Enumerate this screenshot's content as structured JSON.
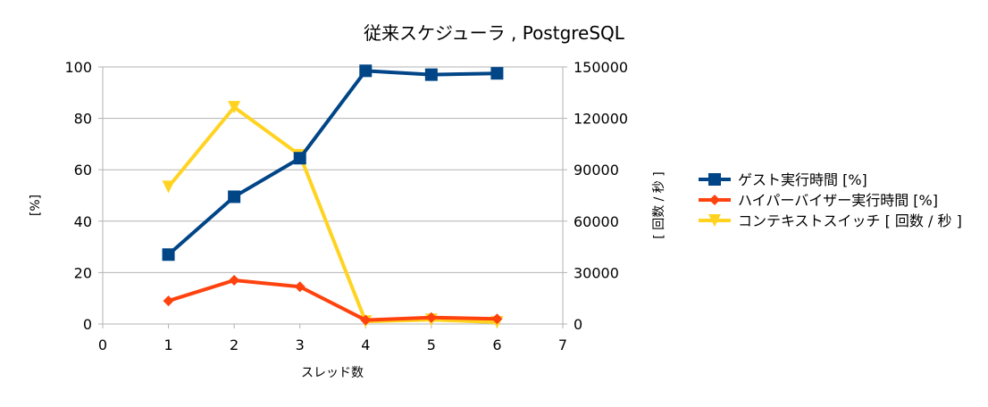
{
  "chart_data": {
    "type": "line",
    "title": "従来スケジューラ , PostgreSQL",
    "xlabel": "スレッド数",
    "ylabel_left": "[%]",
    "ylabel_right": "[ 回数 / 秒 ]",
    "x": [
      1,
      2,
      3,
      4,
      5,
      6
    ],
    "xlim": [
      0,
      7
    ],
    "xticks": [
      "0",
      "1",
      "2",
      "3",
      "4",
      "5",
      "6",
      "7"
    ],
    "ylim_left": [
      0,
      100
    ],
    "yticks_left": [
      "0",
      "20",
      "40",
      "60",
      "80",
      "100"
    ],
    "ylim_right": [
      0,
      150000
    ],
    "yticks_right": [
      "0",
      "30000",
      "60000",
      "90000",
      "120000",
      "150000"
    ],
    "grid": "horizontal",
    "legend_position": "right",
    "series": [
      {
        "name": "ゲスト実行時間 [%]",
        "axis": "left",
        "color": "#004586",
        "marker": "square",
        "values": [
          27,
          49.5,
          64.5,
          98.5,
          97,
          97.5
        ]
      },
      {
        "name": "ハイパーバイザー実行時間 [%]",
        "axis": "left",
        "color": "#ff420e",
        "marker": "diamond",
        "values": [
          9,
          17,
          14.5,
          1.5,
          2.5,
          2
        ]
      },
      {
        "name": "コンテキストスイッチ [ 回数 / 秒 ]",
        "axis": "right",
        "color": "#ffd320",
        "marker": "triangle-down",
        "values": [
          80000,
          126500,
          98500,
          1500,
          2500,
          1000
        ]
      }
    ]
  }
}
